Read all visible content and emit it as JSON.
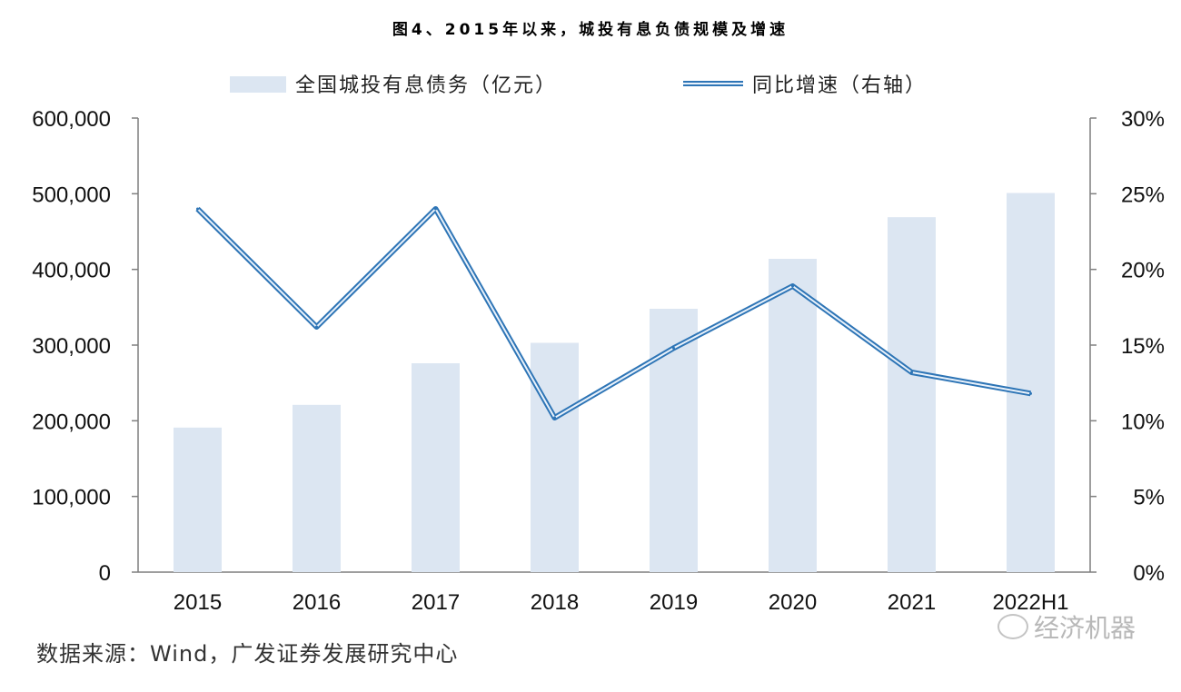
{
  "title": "图4、2015年以来，城投有息负债规模及增速",
  "source": "数据来源：Wind，广发证券发展研究中心",
  "watermark": "经济机器",
  "colors": {
    "bar": "#dce6f2",
    "line": "#2e75b6",
    "line_inner": "#eaf2fb",
    "axis": "#7f7f7f"
  },
  "chart_data": {
    "type": "bar+line",
    "categories": [
      "2015",
      "2016",
      "2017",
      "2018",
      "2019",
      "2020",
      "2021",
      "2022H1"
    ],
    "series": [
      {
        "name": "全国城投有息债务（亿元）",
        "type": "bar",
        "axis": "left",
        "values": [
          191000,
          221000,
          276000,
          303000,
          348000,
          414000,
          469000,
          501000
        ]
      },
      {
        "name": "同比增速（右轴）",
        "type": "line",
        "axis": "right",
        "values": [
          24.0,
          16.2,
          24.0,
          10.2,
          14.8,
          18.9,
          13.2,
          11.8
        ]
      }
    ],
    "y_left": {
      "min": 0,
      "max": 600000,
      "ticks": [
        "0",
        "100,000",
        "200,000",
        "300,000",
        "400,000",
        "500,000",
        "600,000"
      ]
    },
    "y_right": {
      "min": 0,
      "max": 30,
      "ticks": [
        "0%",
        "5%",
        "10%",
        "15%",
        "20%",
        "25%",
        "30%"
      ]
    },
    "legend_position": "top",
    "grid": false
  }
}
